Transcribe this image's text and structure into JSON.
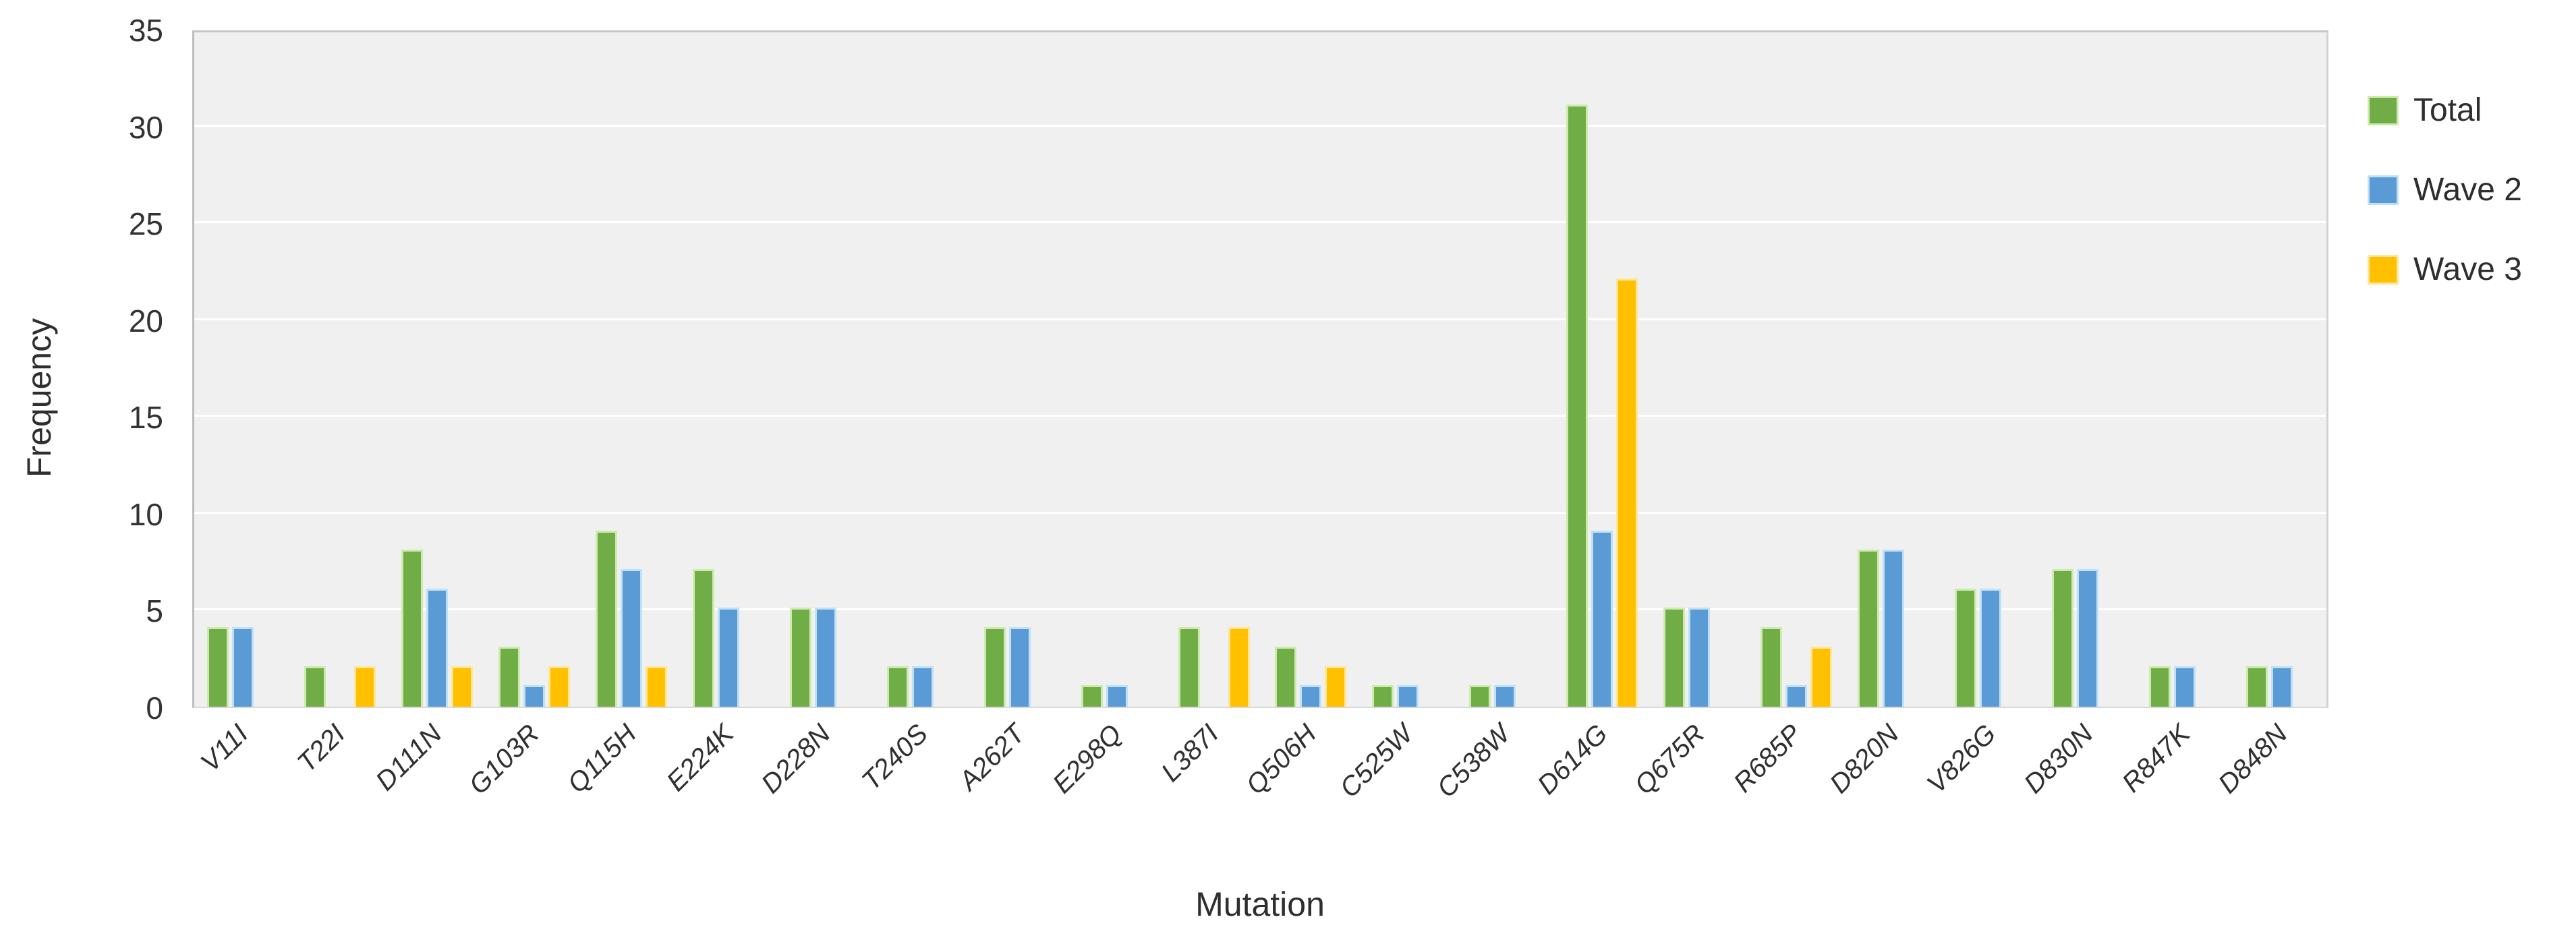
{
  "chart_data": {
    "type": "bar",
    "title": "",
    "xlabel": "Mutation",
    "ylabel": "Frequency",
    "ylim": [
      0,
      35
    ],
    "ytick_step": 5,
    "ytick_labels": [
      "0",
      "5",
      "10",
      "15",
      "20",
      "25",
      "30",
      "35"
    ],
    "grid": true,
    "legend_position": "right",
    "categories": [
      "V11I",
      "T22I",
      "D111N",
      "G103R",
      "Q115H",
      "E224K",
      "D228N",
      "T240S",
      "A262T",
      "E298Q",
      "L387I",
      "Q506H",
      "C525W",
      "C538W",
      "D614G",
      "Q675R",
      "R685P",
      "D820N",
      "V826G",
      "D830N",
      "R847K",
      "D848N"
    ],
    "series": [
      {
        "name": "Total",
        "color": "#70AD47",
        "halo": "#CDEBAF",
        "values": [
          4,
          2,
          8,
          3,
          9,
          7,
          5,
          2,
          4,
          1,
          4,
          3,
          1,
          1,
          31,
          5,
          4,
          8,
          6,
          7,
          2,
          2
        ]
      },
      {
        "name": "Wave 2",
        "color": "#5B9BD5",
        "halo": "#BFE0F5",
        "values": [
          4,
          0,
          6,
          1,
          7,
          5,
          5,
          2,
          4,
          1,
          0,
          1,
          1,
          1,
          9,
          5,
          1,
          8,
          6,
          7,
          2,
          2
        ]
      },
      {
        "name": "Wave 3",
        "color": "#FFC000",
        "halo": "#FFE699",
        "values": [
          0,
          2,
          2,
          2,
          2,
          0,
          0,
          0,
          0,
          0,
          4,
          2,
          0,
          0,
          22,
          0,
          3,
          0,
          0,
          0,
          0,
          0
        ]
      }
    ]
  },
  "colors": {
    "plot_bg": "#F0F0F0",
    "gridline": "#FFFFFF",
    "plot_border": "#BDBDBD",
    "baseline": "#D9D9D9",
    "text": "#2E2E2E"
  }
}
